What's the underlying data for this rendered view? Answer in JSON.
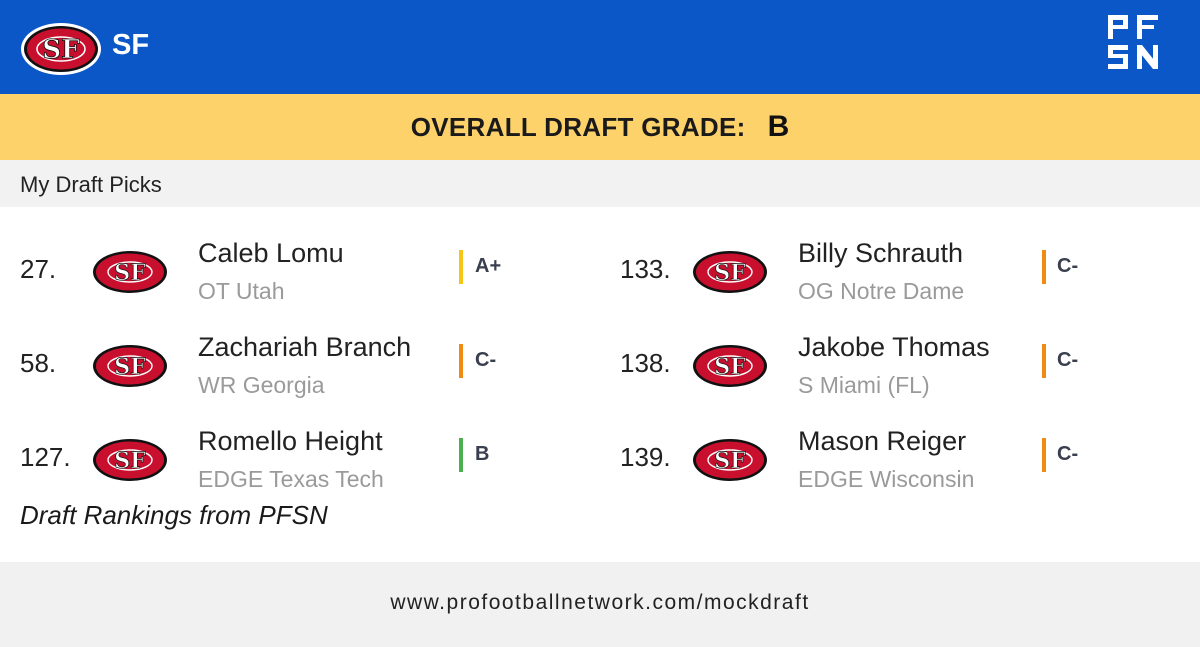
{
  "header": {
    "team_abbr": "SF",
    "team_logo_icon": "49ers-logo-icon",
    "brand_logo_icon": "pfsn-logo-icon",
    "background_color": "#0b57c8"
  },
  "overall": {
    "label": "OVERALL DRAFT GRADE:",
    "grade": "B",
    "background_color": "#fdd26a"
  },
  "section": {
    "title": "My Draft Picks"
  },
  "picks": [
    {
      "number": "27.",
      "name": "Caleb Lomu",
      "info": "OT Utah",
      "grade": "A+",
      "grade_color": "#f5c518"
    },
    {
      "number": "58.",
      "name": "Zachariah Branch",
      "info": "WR Georgia",
      "grade": "C-",
      "grade_color": "#f08a12"
    },
    {
      "number": "127.",
      "name": "Romello Height",
      "info": "EDGE Texas Tech",
      "grade": "B",
      "grade_color": "#4cae4f"
    },
    {
      "number": "133.",
      "name": "Billy Schrauth",
      "info": "OG Notre Dame",
      "grade": "C-",
      "grade_color": "#f08a12"
    },
    {
      "number": "138.",
      "name": "Jakobe Thomas",
      "info": "S Miami (FL)",
      "grade": "C-",
      "grade_color": "#f08a12"
    },
    {
      "number": "139.",
      "name": "Mason Reiger",
      "info": "EDGE Wisconsin",
      "grade": "C-",
      "grade_color": "#f08a12"
    }
  ],
  "rankings_note": "Draft Rankings from PFSN",
  "footer": {
    "url": "www.profootballnetwork.com/mockdraft"
  }
}
